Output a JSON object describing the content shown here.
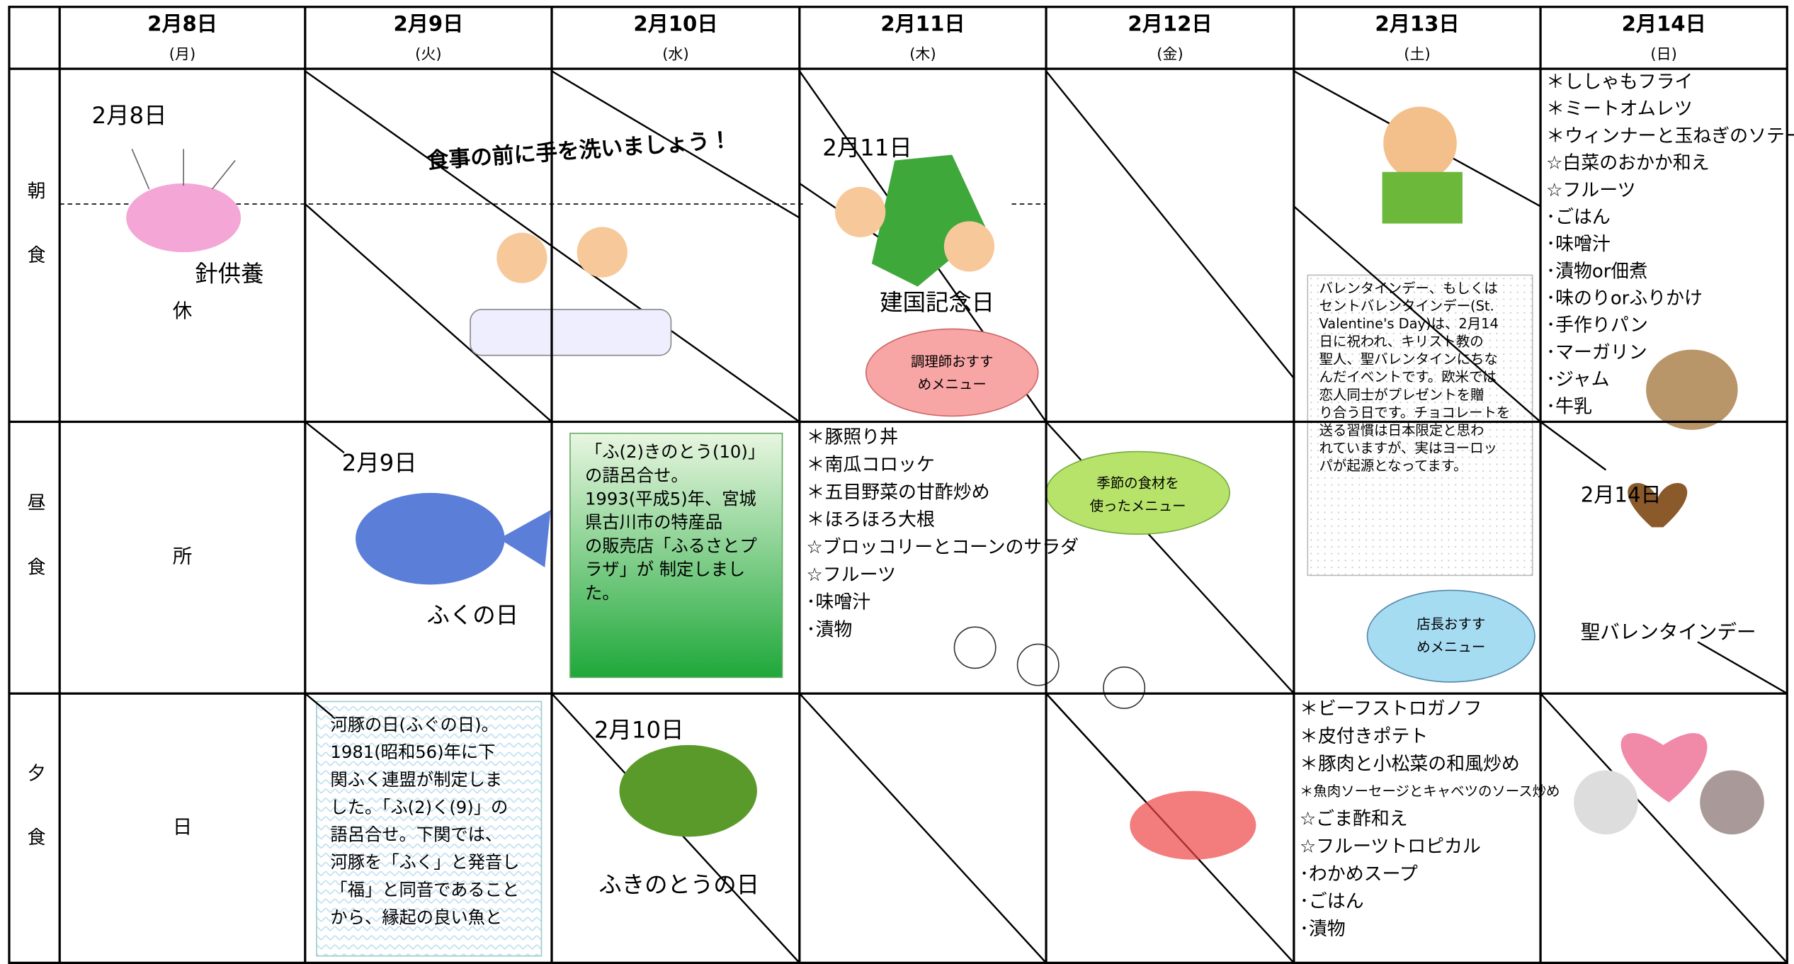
{
  "header": {
    "days": [
      {
        "date": "2月8日",
        "weekday": "(月)"
      },
      {
        "date": "2月9日",
        "weekday": "(火)"
      },
      {
        "date": "2月10日",
        "weekday": "(水)"
      },
      {
        "date": "2月11日",
        "weekday": "(木)"
      },
      {
        "date": "2月12日",
        "weekday": "(金)"
      },
      {
        "date": "2月13日",
        "weekday": "(土)"
      },
      {
        "date": "2月14日",
        "weekday": "(日)"
      }
    ]
  },
  "meals": [
    "朝食",
    "昼食",
    "夕食"
  ],
  "closed": [
    "休",
    "所",
    "日"
  ],
  "cells": {
    "mon": {
      "date": "2月8日",
      "event": "針供養"
    },
    "tue": {
      "banner": "食事の前に手を洗いましょう！",
      "date": "2月9日",
      "event": "ふくの日",
      "note": [
        "河豚の日(ふぐの日)。",
        "1981(昭和56)年に下",
        "関ふく連盟が制定しま",
        "した。「ふ(2)く(9)」の",
        "語呂合せ。下関では、",
        "河豚を「ふく」と発音し",
        "「福」と同音であること",
        "から、縁起の良い魚と"
      ]
    },
    "wed": {
      "date": "2月10日",
      "event": "ふきのとうの日",
      "note": [
        "「ふ(2)きのとう(10)」",
        "の語呂合せ。",
        "1993(平成5)年、宮城",
        "県古川市の特産品",
        "の販売店「ふるさとプ",
        "ラザ」が 制定しまし",
        "た。"
      ]
    },
    "thu": {
      "date": "2月11日",
      "event": "建国記念日",
      "callout_chef": [
        "調理師おすす",
        "めメニュー"
      ],
      "lunch_menu": [
        "＊豚照り丼",
        "＊南瓜コロッケ",
        "＊五目野菜の甘酢炒め",
        "＊ほろほろ大根",
        "☆ブロッコリーとコーンのサラダ",
        "☆フルーツ",
        "･味噌汁",
        "･漬物"
      ],
      "callout_season": [
        "季節の食材を",
        "使ったメニュー"
      ]
    },
    "sat": {
      "note": [
        "バレンタインデー、もしくは",
        "セントバレンタインデー(St.",
        "Valentine's Day)は、2月14",
        "日に祝われ、キリスト教の",
        "聖人、聖バレンタインにちな",
        "んだイベントです。欧米では",
        "恋人同士がプレゼントを贈",
        "り合う日です。チョコレートを",
        "送る習慣は日本限定と思わ",
        "れていますが、実はヨーロッ",
        "パが起源となってます。"
      ],
      "callout_manager": [
        "店長おすす",
        "めメニュー"
      ],
      "dinner_menu": [
        "＊ビーフストロガノフ",
        "＊皮付きポテト",
        "＊豚肉と小松菜の和風炒め",
        "＊魚肉ソーセージとキャベツのソース炒め",
        "☆ごま酢和え",
        "☆フルーツトロピカル",
        "･わかめスープ",
        "･ごはん",
        "･漬物"
      ]
    },
    "sun": {
      "breakfast_menu": [
        "＊ししゃもフライ",
        "＊ミートオムレツ",
        "＊ウィンナーと玉ねぎのソテー",
        "☆白菜のおかか和え",
        "☆フルーツ",
        "･ごはん",
        "･味噌汁",
        "･漬物or佃煮",
        "･味のりorふりかけ",
        "･手作りパン",
        "･マーガリン",
        "･ジャム",
        "･牛乳"
      ],
      "date": "2月14日",
      "event": "聖バレンタインデー"
    }
  }
}
